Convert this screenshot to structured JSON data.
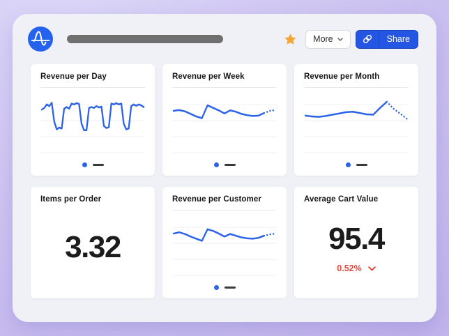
{
  "header": {
    "app": "Amplitude dashboard",
    "more_label": "More",
    "share_label": "Share"
  },
  "colors": {
    "background_start": "#DCD7F8",
    "background_end": "#C1B5EC",
    "panel_bg": "#EFF1F6",
    "card_bg": "#FFFFFF",
    "line_blue": "#2C63E8",
    "logo_blue": "#2563EE",
    "share_blue": "#2456E4",
    "share_divider": "#1D43B8",
    "star_gold": "#F2A73D",
    "title_bar_gray": "#6F6F6F",
    "grid_line": "#F1F1F1",
    "card_divider": "#EBEBEB",
    "legend_dash": "#3A3A3A",
    "change_red": "#E8483C",
    "text_dark": "#1C1C1C"
  },
  "icons": {
    "logo": "amplitude-wave-logo",
    "star": "favorite-star-icon",
    "more_chevron": "chevron-down-icon",
    "share_link": "link-icon",
    "change_chevron": "chevron-down-icon"
  },
  "chart_data": [
    {
      "type": "line",
      "title": "Revenue per Day",
      "color": "#2C63E8",
      "grid": true,
      "legend_markers": [
        "series-dot",
        "series-dash"
      ],
      "values": [
        58,
        62,
        70,
        66,
        74,
        30,
        12,
        16,
        14,
        60,
        64,
        60,
        72,
        70,
        73,
        71,
        25,
        10,
        10,
        62,
        64,
        62,
        66,
        63,
        65,
        20,
        15,
        17,
        72,
        70,
        73,
        70,
        72,
        25,
        12,
        14,
        66,
        70,
        67,
        70,
        68,
        64
      ]
    },
    {
      "type": "line",
      "title": "Revenue per Week",
      "color": "#2C63E8",
      "grid": true,
      "legend_markers": [
        "series-dot",
        "series-dash"
      ],
      "dotted_from": 16,
      "values": [
        55,
        57,
        54,
        48,
        42,
        38,
        68,
        62,
        56,
        49,
        56,
        53,
        48,
        45,
        43,
        44,
        50,
        55,
        57
      ]
    },
    {
      "type": "line",
      "title": "Revenue per Month",
      "color": "#2C63E8",
      "grid": true,
      "legend_markers": [
        "series-dot",
        "series-dash"
      ],
      "dotted_from": 12,
      "values": [
        44,
        42,
        41,
        43,
        46,
        49,
        52,
        53,
        50,
        47,
        46,
        62,
        76,
        60,
        48,
        36
      ]
    },
    {
      "type": "number",
      "title": "Items per Order",
      "value": "3.32"
    },
    {
      "type": "line",
      "title": "Revenue per Customer",
      "color": "#2C63E8",
      "grid": true,
      "legend_markers": [
        "series-dot",
        "series-dash"
      ],
      "dotted_from": 16,
      "values": [
        55,
        58,
        54,
        48,
        43,
        38,
        65,
        61,
        55,
        48,
        54,
        50,
        46,
        44,
        43,
        45,
        50,
        53,
        55
      ]
    },
    {
      "type": "number",
      "title": "Average Cart Value",
      "value": "95.4",
      "change": "0.52%",
      "change_direction": "down"
    }
  ]
}
